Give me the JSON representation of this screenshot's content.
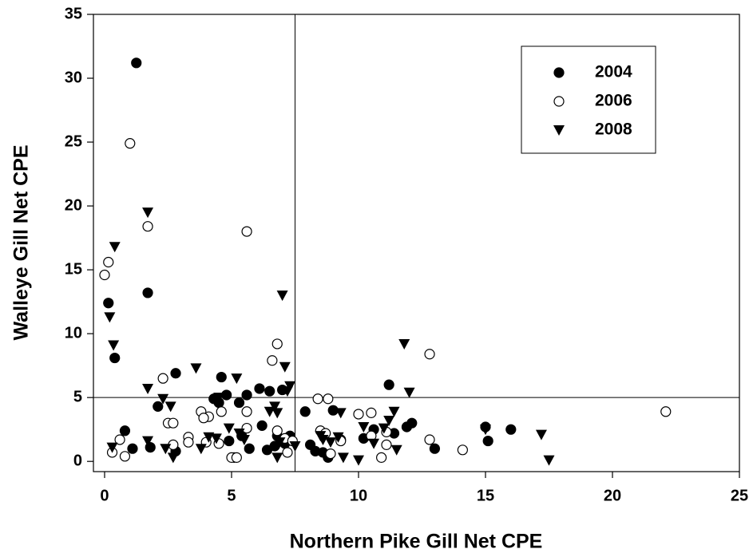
{
  "chart_data": {
    "type": "scatter",
    "x_label": "Northern Pike Gill Net CPE",
    "y_label": "Walleye Gill Net CPE",
    "xlim": [
      -0.44,
      25
    ],
    "ylim": [
      -0.8,
      35
    ],
    "xticks": [
      0,
      5,
      10,
      15,
      20,
      25
    ],
    "yticks": [
      0,
      5,
      10,
      15,
      20,
      25,
      30,
      35
    ],
    "vlines": [
      7.5
    ],
    "hlines": [
      5
    ],
    "legend": "upper right",
    "series": [
      {
        "name": "2004",
        "color": "#000000",
        "marker": "filled circle",
        "x": [
          1.25,
          0.15,
          0.4,
          1.7,
          0.8,
          1.1,
          1.8,
          2.1,
          2.8,
          2.8,
          4.6,
          4.5,
          4.8,
          5.3,
          5.6,
          6.1,
          6.5,
          7,
          7.3,
          5.1,
          5.4,
          5.7,
          6.2,
          6.4,
          6.7,
          7.1,
          4.3,
          4.9,
          7.9,
          8.1,
          8.3,
          8.6,
          8.6,
          8.8,
          9,
          9.3,
          10.6,
          11.2,
          11.4,
          11.9,
          12.1,
          13,
          15,
          15.1,
          16,
          6.8,
          10.2
        ],
        "values": [
          31.2,
          12.4,
          8.1,
          13.2,
          2.4,
          1.0,
          1.1,
          4.3,
          6.9,
          0.8,
          6.6,
          4.6,
          5.2,
          4.6,
          5.2,
          5.7,
          5.5,
          5.6,
          2.0,
          0.3,
          2.0,
          1.0,
          2.8,
          0.9,
          1.2,
          1.4,
          4.9,
          1.6,
          3.9,
          1.3,
          0.8,
          0.7,
          2.2,
          0.3,
          4.0,
          1.7,
          2.5,
          6.0,
          2.2,
          2.7,
          3.0,
          1.0,
          2.7,
          1.6,
          2.5,
          2.0,
          1.8
        ]
      },
      {
        "name": "2006",
        "color": "#000000",
        "marker": "open circle",
        "x": [
          0,
          0.15,
          1,
          1.7,
          5.6,
          0.3,
          0.6,
          0.8,
          2.3,
          2.5,
          2.7,
          2.7,
          3.3,
          3.3,
          3.8,
          4.1,
          3.9,
          4,
          4.5,
          4.6,
          5,
          5.2,
          5.6,
          6.8,
          6.6,
          6.8,
          7.1,
          7.2,
          7.4,
          8.4,
          8.8,
          8.5,
          8.7,
          8.9,
          9.3,
          10,
          10.5,
          10.5,
          10.9,
          11.1,
          11.1,
          12.8,
          12.8,
          14.1,
          22.1,
          5.6
        ],
        "values": [
          14.6,
          15.6,
          24.9,
          18.4,
          18.0,
          0.7,
          1.7,
          0.4,
          6.5,
          3.0,
          3.0,
          1.3,
          1.9,
          1.5,
          3.9,
          3.5,
          3.4,
          1.5,
          1.4,
          3.9,
          0.3,
          0.3,
          3.9,
          9.2,
          7.9,
          2.4,
          1.8,
          0.7,
          1.6,
          4.9,
          4.9,
          2.4,
          2.2,
          0.6,
          1.6,
          3.7,
          3.8,
          2.0,
          0.3,
          2.3,
          1.3,
          8.4,
          1.7,
          0.9,
          3.9,
          2.6
        ]
      },
      {
        "name": "2008",
        "color": "#000000",
        "marker": "down triangle",
        "x": [
          0.4,
          1.7,
          0.2,
          0.35,
          7,
          1.7,
          2.3,
          2.6,
          0.3,
          1.7,
          2.4,
          2.7,
          3.6,
          3.8,
          4.1,
          4.4,
          4.5,
          4.9,
          5.2,
          5.5,
          6.5,
          6.7,
          6.8,
          7.1,
          7.2,
          7.3,
          6.8,
          6.9,
          7.5,
          8.5,
          8.6,
          8.9,
          9.2,
          9.3,
          9.4,
          10,
          10.2,
          10.6,
          11,
          11.2,
          11.4,
          11.5,
          11.8,
          12,
          15,
          17.2,
          17.5,
          5.3
        ],
        "values": [
          16.8,
          19.5,
          11.3,
          9.1,
          13,
          5.7,
          4.9,
          4.3,
          1.1,
          1.6,
          1.0,
          0.3,
          7.3,
          1.0,
          1.9,
          1.8,
          5.0,
          2.6,
          6.5,
          1.7,
          3.9,
          4.3,
          3.8,
          7.4,
          5.5,
          5.9,
          0.3,
          1.5,
          1.2,
          2.0,
          1.7,
          1.5,
          1.9,
          3.8,
          0.3,
          0.1,
          2.7,
          1.4,
          2.6,
          3.2,
          3.9,
          0.9,
          9.2,
          5.4,
          2.5,
          2.1,
          0.1,
          2.2
        ]
      }
    ]
  }
}
